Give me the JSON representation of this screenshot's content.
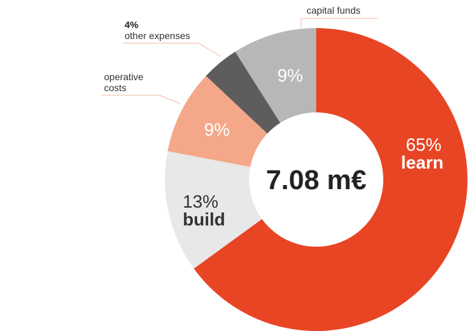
{
  "chart_data": {
    "type": "pie",
    "variant": "donut",
    "total_label": "7.08 m€",
    "slices": [
      {
        "key": "learn",
        "percent": 65,
        "value_label": "65%",
        "name": "learn",
        "color": "#E84524",
        "text_color": "#FFFFFF"
      },
      {
        "key": "build",
        "percent": 13,
        "value_label": "13%",
        "name": "build",
        "color": "#E8E8E8",
        "text_color": "#333333"
      },
      {
        "key": "operative",
        "percent": 9,
        "value_label": "9%",
        "name": "operative costs",
        "color": "#F4A889",
        "text_color": "#FFFFFF"
      },
      {
        "key": "other",
        "percent": 4,
        "value_label": "4%",
        "name": "other expenses",
        "color": "#5E5C5D",
        "text_color": "#FFFFFF"
      },
      {
        "key": "capital",
        "percent": 9,
        "value_label": "9%",
        "name": "capital funds",
        "color": "#B7B7B7",
        "text_color": "#FFFFFF"
      }
    ],
    "external_labels": {
      "capital": "capital funds",
      "other_pct": "4%",
      "other": "other expenses",
      "operative_line1": "operative",
      "operative_line2": "costs"
    },
    "leader_color": "#F2B9A6"
  }
}
